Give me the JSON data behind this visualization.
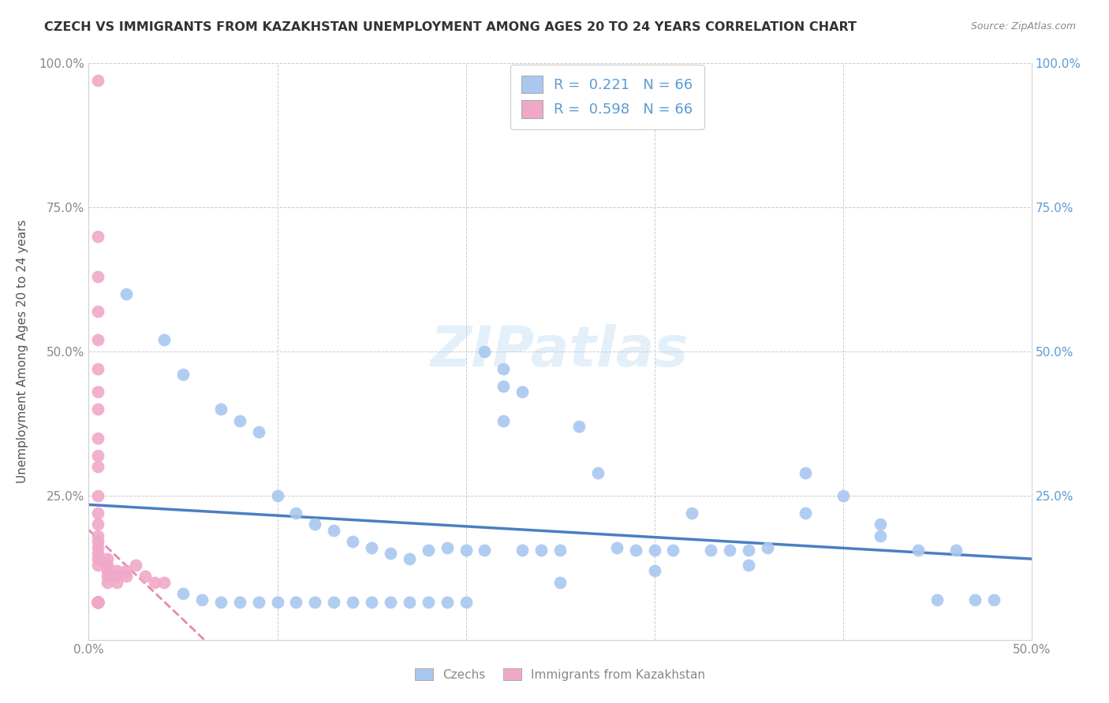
{
  "title": "CZECH VS IMMIGRANTS FROM KAZAKHSTAN UNEMPLOYMENT AMONG AGES 20 TO 24 YEARS CORRELATION CHART",
  "source": "Source: ZipAtlas.com",
  "ylabel": "Unemployment Among Ages 20 to 24 years",
  "xlim": [
    0.0,
    0.5
  ],
  "ylim": [
    0.0,
    1.0
  ],
  "xticks": [
    0.0,
    0.1,
    0.2,
    0.3,
    0.4,
    0.5
  ],
  "xtick_labels": [
    "0.0%",
    "",
    "",
    "",
    "",
    "50.0%"
  ],
  "ytick_labels_left": [
    "",
    "25.0%",
    "50.0%",
    "75.0%",
    "100.0%"
  ],
  "ytick_labels_right": [
    "",
    "25.0%",
    "50.0%",
    "75.0%",
    "100.0%"
  ],
  "yticks": [
    0.0,
    0.25,
    0.5,
    0.75,
    1.0
  ],
  "czech_color": "#a8c8f0",
  "kazakh_color": "#f0a8c8",
  "trend_blue": "#4a7fc1",
  "trend_pink": "#e06090",
  "czech_R": 0.221,
  "czech_N": 66,
  "kazakh_R": 0.598,
  "kazakh_N": 66,
  "czech_scatter_x": [
    0.02,
    0.04,
    0.05,
    0.07,
    0.08,
    0.09,
    0.1,
    0.11,
    0.12,
    0.13,
    0.14,
    0.15,
    0.16,
    0.17,
    0.18,
    0.19,
    0.2,
    0.21,
    0.22,
    0.23,
    0.24,
    0.25,
    0.26,
    0.27,
    0.28,
    0.29,
    0.3,
    0.31,
    0.32,
    0.33,
    0.34,
    0.35,
    0.36,
    0.38,
    0.4,
    0.42,
    0.44,
    0.46,
    0.48,
    0.05,
    0.06,
    0.07,
    0.08,
    0.09,
    0.1,
    0.11,
    0.12,
    0.13,
    0.14,
    0.15,
    0.16,
    0.17,
    0.18,
    0.19,
    0.2,
    0.25,
    0.3,
    0.35,
    0.38,
    0.42,
    0.45,
    0.47,
    0.21,
    0.22,
    0.23,
    0.22
  ],
  "czech_scatter_y": [
    0.6,
    0.52,
    0.46,
    0.4,
    0.38,
    0.36,
    0.25,
    0.22,
    0.2,
    0.19,
    0.17,
    0.16,
    0.15,
    0.14,
    0.155,
    0.16,
    0.155,
    0.155,
    0.38,
    0.155,
    0.155,
    0.155,
    0.37,
    0.29,
    0.16,
    0.155,
    0.155,
    0.155,
    0.22,
    0.155,
    0.155,
    0.155,
    0.16,
    0.29,
    0.25,
    0.2,
    0.155,
    0.155,
    0.07,
    0.08,
    0.07,
    0.065,
    0.065,
    0.065,
    0.065,
    0.065,
    0.065,
    0.065,
    0.065,
    0.065,
    0.065,
    0.065,
    0.065,
    0.065,
    0.065,
    0.1,
    0.12,
    0.13,
    0.22,
    0.18,
    0.07,
    0.07,
    0.5,
    0.47,
    0.43,
    0.44
  ],
  "kazakh_scatter_x": [
    0.005,
    0.005,
    0.005,
    0.005,
    0.005,
    0.005,
    0.005,
    0.005,
    0.005,
    0.005,
    0.005,
    0.005,
    0.005,
    0.005,
    0.005,
    0.005,
    0.005,
    0.005,
    0.005,
    0.005,
    0.01,
    0.01,
    0.01,
    0.01,
    0.01,
    0.015,
    0.015,
    0.015,
    0.02,
    0.02,
    0.025,
    0.03,
    0.035,
    0.04,
    0.005,
    0.005,
    0.005,
    0.005,
    0.005,
    0.005,
    0.005,
    0.005,
    0.005,
    0.005,
    0.005,
    0.005,
    0.005,
    0.005,
    0.005,
    0.005,
    0.005,
    0.005,
    0.005,
    0.005,
    0.005,
    0.005,
    0.005,
    0.005,
    0.005,
    0.005,
    0.005,
    0.005,
    0.005,
    0.005,
    0.005,
    0.005
  ],
  "kazakh_scatter_y": [
    0.97,
    0.7,
    0.63,
    0.57,
    0.52,
    0.47,
    0.43,
    0.4,
    0.35,
    0.32,
    0.3,
    0.25,
    0.22,
    0.2,
    0.18,
    0.17,
    0.16,
    0.15,
    0.14,
    0.13,
    0.14,
    0.13,
    0.12,
    0.11,
    0.1,
    0.12,
    0.11,
    0.1,
    0.12,
    0.11,
    0.13,
    0.11,
    0.1,
    0.1,
    0.065,
    0.065,
    0.065,
    0.065,
    0.065,
    0.065,
    0.065,
    0.065,
    0.065,
    0.065,
    0.065,
    0.065,
    0.065,
    0.065,
    0.065,
    0.065,
    0.065,
    0.065,
    0.065,
    0.065,
    0.065,
    0.065,
    0.065,
    0.065,
    0.065,
    0.065,
    0.065,
    0.065,
    0.065,
    0.065,
    0.065,
    0.065
  ]
}
